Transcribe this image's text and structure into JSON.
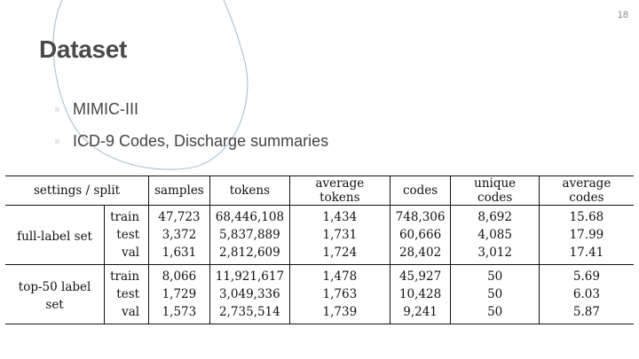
{
  "page_number": "18",
  "title": "Dataset",
  "bullets": [
    {
      "text": "MIMIC-III"
    },
    {
      "text": "ICD-9 Codes, Discharge summaries"
    }
  ],
  "table": {
    "headers": {
      "settings_split": "settings / split",
      "samples": "samples",
      "tokens": "tokens",
      "average_tokens": "average tokens",
      "codes": "codes",
      "unique_codes": "unique codes",
      "average_codes": "average codes"
    },
    "groups": [
      {
        "setting": "full-label set",
        "rows": [
          {
            "split": "train",
            "samples": "47,723",
            "tokens": "68,446,108",
            "average_tokens": "1,434",
            "codes": "748,306",
            "unique_codes": "8,692",
            "average_codes": "15.68"
          },
          {
            "split": "test",
            "samples": "3,372",
            "tokens": "5,837,889",
            "average_tokens": "1,731",
            "codes": "60,666",
            "unique_codes": "4,085",
            "average_codes": "17.99"
          },
          {
            "split": "val",
            "samples": "1,631",
            "tokens": "2,812,609",
            "average_tokens": "1,724",
            "codes": "28,402",
            "unique_codes": "3,012",
            "average_codes": "17.41"
          }
        ]
      },
      {
        "setting": "top-50 label set",
        "rows": [
          {
            "split": "train",
            "samples": "8,066",
            "tokens": "11,921,617",
            "average_tokens": "1,478",
            "codes": "45,927",
            "unique_codes": "50",
            "average_codes": "5.69"
          },
          {
            "split": "test",
            "samples": "1,729",
            "tokens": "3,049,336",
            "average_tokens": "1,763",
            "codes": "10,428",
            "unique_codes": "50",
            "average_codes": "6.03"
          },
          {
            "split": "val",
            "samples": "1,573",
            "tokens": "2,735,514",
            "average_tokens": "1,739",
            "codes": "9,241",
            "unique_codes": "50",
            "average_codes": "5.87"
          }
        ]
      }
    ]
  },
  "colors": {
    "title": "#4a4a4a",
    "decoration_stroke": "#a9c2d2"
  }
}
